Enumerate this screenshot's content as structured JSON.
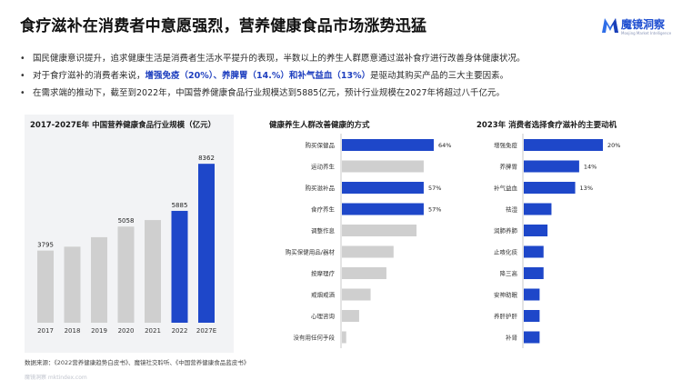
{
  "title": "食疗滋补在消费者中意愿强烈，营养健康食品市场涨势迅猛",
  "brand": {
    "name": "魔镜洞察",
    "tagline": "Moojing Market Intelligence",
    "color": "#1f4fd1"
  },
  "bullets": [
    {
      "parts": [
        "国民健康意识提升，追求健康生活是消费者生活水平提升的表现，半数以上的养生人群愿意通过滋补食疗进行改善身体健康状况。"
      ]
    },
    {
      "parts": [
        "对于食疗滋补的消费者来说，",
        "增强免疫（20%）、养脾胃（14.%）和补气益血（13%）",
        "是驱动其购买产品的三大主要因素。"
      ],
      "highlight_index": 1
    },
    {
      "parts": [
        "在需求端的推动下，截至到2022年，中国营养健康食品行业规模达到5885亿元，预计行业规模在2027年将超过八千亿元。"
      ]
    }
  ],
  "colors": {
    "accent": "#1e47c9",
    "grey": "#cfcfcf",
    "panel": "#f2f3f5"
  },
  "chart_data": [
    {
      "type": "bar",
      "title": "2017-2027E年 中国营养健康食品行业规模（亿元）",
      "categories": [
        "2017",
        "2018",
        "2019",
        "2020",
        "2021",
        "2022",
        "2027E"
      ],
      "values": [
        3795,
        4000,
        4500,
        5058,
        5400,
        5885,
        8362
      ],
      "value_labels": [
        "3795",
        "",
        "",
        "5058",
        "",
        "5885",
        "8362"
      ],
      "highlight": [
        "2022",
        "2027E"
      ],
      "ylim": [
        0,
        9000
      ]
    },
    {
      "type": "bar",
      "orientation": "horizontal",
      "title": "健康养生人群改善健康的方式",
      "categories": [
        "购买保健品",
        "运动养生",
        "购买滋补品",
        "食疗养生",
        "调整作息",
        "购买保健用品/器材",
        "按摩理疗",
        "戒烟戒酒",
        "心理咨询",
        "没有用任何手段"
      ],
      "values": [
        64,
        57,
        57,
        57,
        52,
        36,
        31,
        20,
        12,
        3
      ],
      "value_labels": [
        "64%",
        "",
        "57%",
        "57%",
        "",
        "",
        "",
        "",
        "",
        ""
      ],
      "highlight": [
        "购买保健品",
        "购买滋补品",
        "食疗养生"
      ],
      "xlim": [
        0,
        64
      ]
    },
    {
      "type": "bar",
      "orientation": "horizontal",
      "title": "2023年 消费者选择食疗滋补的主要动机",
      "categories": [
        "增强免疫",
        "养脾胃",
        "补气益血",
        "祛湿",
        "润肺养肺",
        "止咳化痰",
        "降三高",
        "安神助眠",
        "养肝护肝",
        "补肾"
      ],
      "values": [
        20,
        14,
        13,
        7,
        6,
        5,
        5,
        4,
        4,
        4
      ],
      "value_labels": [
        "20%",
        "14%",
        "13%",
        "",
        "",
        "",
        "",
        "",
        "",
        ""
      ],
      "highlight": [
        "增强免疫",
        "养脾胃",
        "补气益血",
        "祛湿",
        "润肺养肺",
        "止咳化痰",
        "降三高",
        "安神助眠",
        "养肝护肝",
        "补肾"
      ],
      "xlim": [
        0,
        20
      ]
    }
  ],
  "source": "数据来源：《2022营养健康趋势白皮书》、魔镜社交聆听、《中国营养健康食品蓝皮书》",
  "watermark": "魔镜洞察 mktindex.com"
}
